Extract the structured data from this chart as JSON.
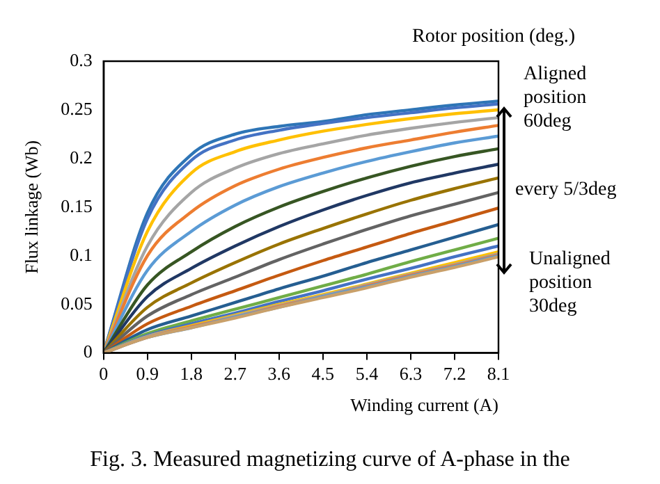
{
  "chart_data": {
    "type": "line",
    "xlabel": "Winding current (A)",
    "ylabel": "Flux linkage (Wb)",
    "x": [
      0,
      0.9,
      1.8,
      2.7,
      3.6,
      4.5,
      5.4,
      6.3,
      7.2,
      8.1
    ],
    "xlim": [
      0,
      8.1
    ],
    "xticks": [
      0,
      0.9,
      1.8,
      2.7,
      3.6,
      4.5,
      5.4,
      6.3,
      7.2,
      8.1
    ],
    "ylim": [
      0,
      0.3
    ],
    "yticks": [
      0,
      0.05,
      0.1,
      0.15,
      0.2,
      0.25,
      0.3
    ],
    "grid": false,
    "legend": false,
    "marker": "none",
    "line_style": "solid",
    "series": [
      {
        "color": "#2e75b6",
        "values": [
          0,
          0.144,
          0.204,
          0.225,
          0.233,
          0.238,
          0.245,
          0.25,
          0.255,
          0.259
        ]
      },
      {
        "color": "#4472c4",
        "values": [
          0,
          0.138,
          0.198,
          0.219,
          0.229,
          0.236,
          0.242,
          0.247,
          0.252,
          0.256
        ]
      },
      {
        "color": "#ffc000",
        "values": [
          0,
          0.125,
          0.185,
          0.207,
          0.219,
          0.228,
          0.235,
          0.241,
          0.246,
          0.25
        ]
      },
      {
        "color": "#a5a5a5",
        "values": [
          0,
          0.11,
          0.165,
          0.19,
          0.205,
          0.215,
          0.224,
          0.231,
          0.237,
          0.242
        ]
      },
      {
        "color": "#ed7d31",
        "values": [
          0,
          0.1,
          0.145,
          0.172,
          0.189,
          0.201,
          0.211,
          0.219,
          0.227,
          0.234
        ]
      },
      {
        "color": "#5b9bd5",
        "values": [
          0,
          0.085,
          0.125,
          0.152,
          0.171,
          0.185,
          0.197,
          0.207,
          0.216,
          0.223
        ]
      },
      {
        "color": "#375623",
        "values": [
          0,
          0.07,
          0.104,
          0.13,
          0.15,
          0.166,
          0.18,
          0.192,
          0.202,
          0.21
        ]
      },
      {
        "color": "#203864",
        "values": [
          0,
          0.058,
          0.087,
          0.11,
          0.13,
          0.147,
          0.162,
          0.175,
          0.185,
          0.194
        ]
      },
      {
        "color": "#997300",
        "values": [
          0,
          0.047,
          0.072,
          0.093,
          0.112,
          0.128,
          0.143,
          0.157,
          0.169,
          0.18
        ]
      },
      {
        "color": "#636363",
        "values": [
          0,
          0.038,
          0.06,
          0.078,
          0.096,
          0.112,
          0.127,
          0.141,
          0.153,
          0.165
        ]
      },
      {
        "color": "#c55a11",
        "values": [
          0,
          0.03,
          0.048,
          0.064,
          0.08,
          0.095,
          0.109,
          0.123,
          0.136,
          0.149
        ]
      },
      {
        "color": "#255e91",
        "values": [
          0,
          0.024,
          0.038,
          0.052,
          0.066,
          0.079,
          0.093,
          0.106,
          0.119,
          0.132
        ]
      },
      {
        "color": "#70ad47",
        "values": [
          0,
          0.02,
          0.033,
          0.045,
          0.057,
          0.069,
          0.081,
          0.094,
          0.106,
          0.118
        ]
      },
      {
        "color": "#4472c4",
        "values": [
          0,
          0.018,
          0.03,
          0.041,
          0.053,
          0.064,
          0.076,
          0.087,
          0.099,
          0.11
        ]
      },
      {
        "color": "#ffc000",
        "values": [
          0,
          0.017,
          0.028,
          0.039,
          0.05,
          0.06,
          0.071,
          0.082,
          0.093,
          0.104
        ]
      },
      {
        "color": "#a5a5a5",
        "values": [
          0,
          0.017,
          0.027,
          0.038,
          0.049,
          0.059,
          0.07,
          0.081,
          0.091,
          0.102
        ]
      },
      {
        "color": "#ed7d31",
        "values": [
          0,
          0.016,
          0.027,
          0.037,
          0.048,
          0.058,
          0.069,
          0.08,
          0.09,
          0.101
        ]
      },
      {
        "color": "#5b9bd5",
        "values": [
          0,
          0.016,
          0.026,
          0.037,
          0.047,
          0.058,
          0.068,
          0.079,
          0.089,
          0.1
        ]
      },
      {
        "color": "#c9a06a",
        "values": [
          0,
          0.016,
          0.026,
          0.036,
          0.047,
          0.057,
          0.067,
          0.078,
          0.088,
          0.099
        ]
      }
    ],
    "annotations": [
      "Rotor position (deg.)",
      "Aligned position 60deg",
      "every 5/3deg",
      "Unaligned position 30deg",
      "Fig. 3.   Measured magnetizing curve of A-phase in the"
    ]
  }
}
